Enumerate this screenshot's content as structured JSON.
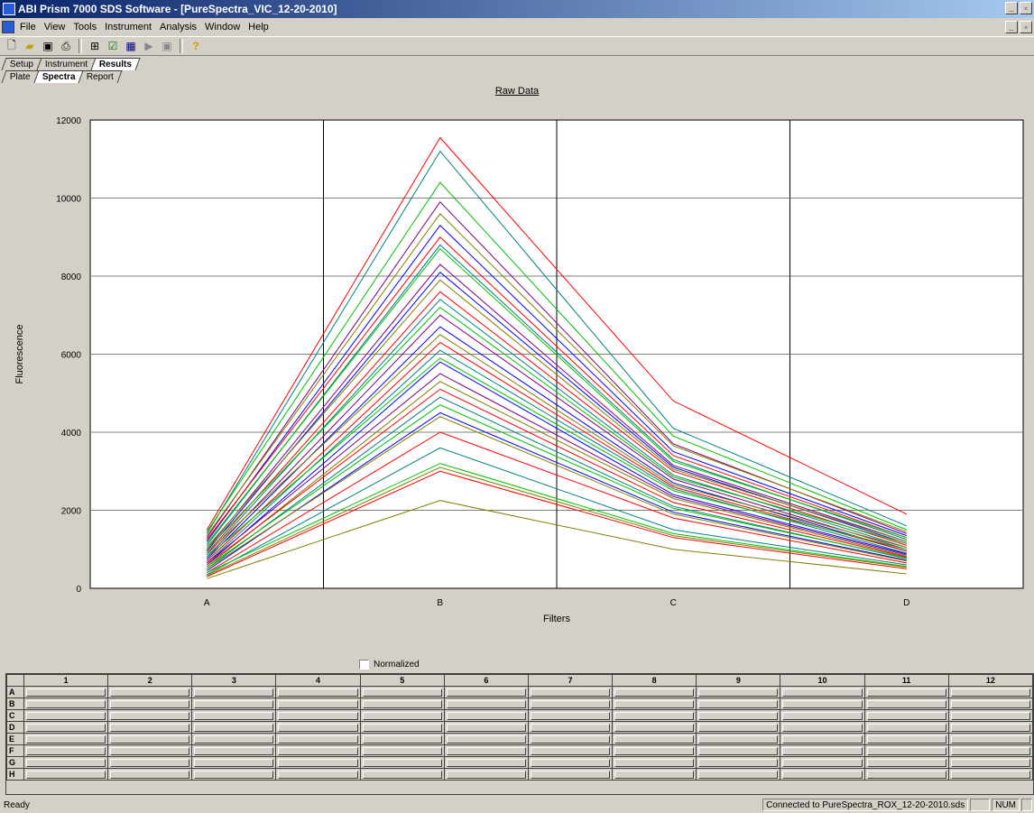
{
  "window": {
    "title": "ABI Prism 7000 SDS Software - [PureSpectra_VIC_12-20-2010]"
  },
  "menu": [
    "File",
    "View",
    "Tools",
    "Instrument",
    "Analysis",
    "Window",
    "Help"
  ],
  "toolbar": [
    "new-icon",
    "open-icon",
    "save-icon",
    "print-icon",
    "analyze-icon",
    "check-icon",
    "grid-icon",
    "play-icon",
    "stop-icon",
    "help-icon"
  ],
  "tabs_top": [
    "Setup",
    "Instrument",
    "Results"
  ],
  "tabs_sub": [
    "Plate",
    "Spectra",
    "Report"
  ],
  "normalized_label": "Normalized",
  "plate": {
    "columns": [
      "1",
      "2",
      "3",
      "4",
      "5",
      "6",
      "7",
      "8",
      "9",
      "10",
      "11",
      "12"
    ],
    "rows": [
      "A",
      "B",
      "C",
      "D",
      "E",
      "F",
      "G",
      "H"
    ]
  },
  "status": {
    "left": "Ready",
    "connection": "Connected to PureSpectra_ROX_12-20-2010.sds",
    "num": "NUM"
  },
  "chart_data": {
    "type": "line",
    "title": "Raw Data",
    "xlabel": "Filters",
    "ylabel": "Fluorescence",
    "categories": [
      "A",
      "B",
      "C",
      "D"
    ],
    "ylim": [
      0,
      12000
    ],
    "yticks": [
      0,
      2000,
      4000,
      6000,
      8000,
      10000,
      12000
    ],
    "grid": true,
    "series": [
      {
        "color": "#ff0000",
        "values": [
          1500,
          11550,
          4800,
          1900
        ]
      },
      {
        "color": "#008080",
        "values": [
          1400,
          11200,
          4100,
          1600
        ]
      },
      {
        "color": "#00c000",
        "values": [
          1450,
          10400,
          3900,
          1500
        ]
      },
      {
        "color": "#800080",
        "values": [
          1300,
          9900,
          3700,
          1400
        ]
      },
      {
        "color": "#808000",
        "values": [
          1350,
          9600,
          3650,
          1450
        ]
      },
      {
        "color": "#0000ff",
        "values": [
          1200,
          9300,
          3500,
          1350
        ]
      },
      {
        "color": "#ff0000",
        "values": [
          1250,
          9000,
          3400,
          1300
        ]
      },
      {
        "color": "#008080",
        "values": [
          1100,
          8800,
          3300,
          1250
        ]
      },
      {
        "color": "#00c000",
        "values": [
          1150,
          8700,
          3250,
          1300
        ]
      },
      {
        "color": "#800080",
        "values": [
          1000,
          8300,
          3150,
          1200
        ]
      },
      {
        "color": "#0000ff",
        "values": [
          950,
          8100,
          3100,
          1150
        ]
      },
      {
        "color": "#808000",
        "values": [
          1050,
          7900,
          3050,
          1200
        ]
      },
      {
        "color": "#ff0000",
        "values": [
          900,
          7600,
          3000,
          1100
        ]
      },
      {
        "color": "#008080",
        "values": [
          850,
          7400,
          2900,
          1050
        ]
      },
      {
        "color": "#00c000",
        "values": [
          1000,
          7200,
          2850,
          1150
        ]
      },
      {
        "color": "#800080",
        "values": [
          800,
          7000,
          2800,
          1000
        ]
      },
      {
        "color": "#0000ff",
        "values": [
          750,
          6700,
          2700,
          950
        ]
      },
      {
        "color": "#808000",
        "values": [
          900,
          6500,
          2650,
          1050
        ]
      },
      {
        "color": "#ff0000",
        "values": [
          700,
          6300,
          2600,
          950
        ]
      },
      {
        "color": "#008080",
        "values": [
          650,
          6100,
          2550,
          900
        ]
      },
      {
        "color": "#00c000",
        "values": [
          800,
          5900,
          2500,
          1000
        ]
      },
      {
        "color": "#0000ff",
        "values": [
          600,
          5800,
          2400,
          880
        ]
      },
      {
        "color": "#800080",
        "values": [
          650,
          5500,
          2350,
          850
        ]
      },
      {
        "color": "#808000",
        "values": [
          550,
          5300,
          2300,
          820
        ]
      },
      {
        "color": "#ff0000",
        "values": [
          600,
          5100,
          2200,
          800
        ]
      },
      {
        "color": "#008080",
        "values": [
          500,
          4900,
          2100,
          760
        ]
      },
      {
        "color": "#00c000",
        "values": [
          550,
          4700,
          2050,
          780
        ]
      },
      {
        "color": "#0000ff",
        "values": [
          450,
          4500,
          1950,
          720
        ]
      },
      {
        "color": "#808000",
        "values": [
          500,
          4400,
          1900,
          700
        ]
      },
      {
        "color": "#ff0000",
        "values": [
          400,
          4000,
          1800,
          650
        ]
      },
      {
        "color": "#008080",
        "values": [
          350,
          3600,
          1500,
          600
        ]
      },
      {
        "color": "#00c000",
        "values": [
          400,
          3200,
          1400,
          560
        ]
      },
      {
        "color": "#808000",
        "values": [
          330,
          3100,
          1350,
          540
        ]
      },
      {
        "color": "#ff0000",
        "values": [
          300,
          3000,
          1300,
          500
        ]
      },
      {
        "color": "#808000",
        "values": [
          250,
          2250,
          1000,
          370
        ]
      }
    ]
  }
}
